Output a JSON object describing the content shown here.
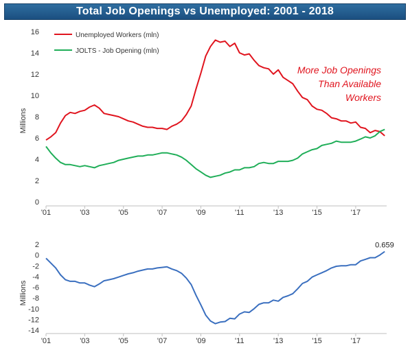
{
  "title": "Total Job Openings vs Unemployed: 2001 - 2018",
  "colors": {
    "unemployed": "#e0141e",
    "openings": "#1fae58",
    "difference": "#3a6fbf",
    "title_bg": "#1f5585"
  },
  "chart_data": [
    {
      "type": "line",
      "x_tick_labels": [
        "'01",
        "'03",
        "'05",
        "'07",
        "'09",
        "'11",
        "'13",
        "'15",
        "'17"
      ],
      "ylabel": "Millions",
      "ylim": [
        0,
        16
      ],
      "y_ticks": [
        0,
        2,
        4,
        6,
        8,
        10,
        12,
        14,
        16
      ],
      "legend_position": "top-left",
      "annotation": [
        "More Job Openings",
        "Than Available",
        "Workers"
      ],
      "series": [
        {
          "name": "Unemployed Workers (mln)",
          "color": "#e0141e",
          "points": [
            [
              2001.0,
              5.8
            ],
            [
              2001.25,
              6.1
            ],
            [
              2001.5,
              6.5
            ],
            [
              2001.75,
              7.4
            ],
            [
              2002.0,
              8.1
            ],
            [
              2002.25,
              8.4
            ],
            [
              2002.5,
              8.3
            ],
            [
              2002.75,
              8.5
            ],
            [
              2003.0,
              8.6
            ],
            [
              2003.25,
              8.9
            ],
            [
              2003.5,
              9.1
            ],
            [
              2003.75,
              8.8
            ],
            [
              2004.0,
              8.3
            ],
            [
              2004.25,
              8.2
            ],
            [
              2004.5,
              8.1
            ],
            [
              2004.75,
              8.0
            ],
            [
              2005.0,
              7.8
            ],
            [
              2005.25,
              7.6
            ],
            [
              2005.5,
              7.5
            ],
            [
              2005.75,
              7.3
            ],
            [
              2006.0,
              7.1
            ],
            [
              2006.25,
              7.0
            ],
            [
              2006.5,
              7.0
            ],
            [
              2006.75,
              6.9
            ],
            [
              2007.0,
              6.9
            ],
            [
              2007.25,
              6.8
            ],
            [
              2007.5,
              7.1
            ],
            [
              2007.75,
              7.3
            ],
            [
              2008.0,
              7.6
            ],
            [
              2008.25,
              8.2
            ],
            [
              2008.5,
              9.0
            ],
            [
              2008.75,
              10.6
            ],
            [
              2009.0,
              12.1
            ],
            [
              2009.25,
              13.7
            ],
            [
              2009.5,
              14.6
            ],
            [
              2009.75,
              15.2
            ],
            [
              2010.0,
              15.0
            ],
            [
              2010.25,
              15.1
            ],
            [
              2010.5,
              14.6
            ],
            [
              2010.75,
              14.9
            ],
            [
              2011.0,
              14.0
            ],
            [
              2011.25,
              13.8
            ],
            [
              2011.5,
              13.9
            ],
            [
              2011.75,
              13.3
            ],
            [
              2012.0,
              12.8
            ],
            [
              2012.25,
              12.6
            ],
            [
              2012.5,
              12.5
            ],
            [
              2012.75,
              12.0
            ],
            [
              2013.0,
              12.4
            ],
            [
              2013.25,
              11.7
            ],
            [
              2013.5,
              11.4
            ],
            [
              2013.75,
              11.1
            ],
            [
              2014.0,
              10.4
            ],
            [
              2014.25,
              9.8
            ],
            [
              2014.5,
              9.6
            ],
            [
              2014.75,
              9.0
            ],
            [
              2015.0,
              8.7
            ],
            [
              2015.25,
              8.6
            ],
            [
              2015.5,
              8.3
            ],
            [
              2015.75,
              7.9
            ],
            [
              2016.0,
              7.8
            ],
            [
              2016.25,
              7.6
            ],
            [
              2016.5,
              7.6
            ],
            [
              2016.75,
              7.4
            ],
            [
              2017.0,
              7.5
            ],
            [
              2017.25,
              7.0
            ],
            [
              2017.5,
              6.9
            ],
            [
              2017.75,
              6.5
            ],
            [
              2018.0,
              6.7
            ],
            [
              2018.25,
              6.6
            ],
            [
              2018.5,
              6.2
            ]
          ]
        },
        {
          "name": "JOLTS - Job Opening (mln)",
          "color": "#1fae58",
          "points": [
            [
              2001.0,
              5.2
            ],
            [
              2001.25,
              4.6
            ],
            [
              2001.5,
              4.1
            ],
            [
              2001.75,
              3.7
            ],
            [
              2002.0,
              3.5
            ],
            [
              2002.25,
              3.5
            ],
            [
              2002.5,
              3.4
            ],
            [
              2002.75,
              3.3
            ],
            [
              2003.0,
              3.4
            ],
            [
              2003.25,
              3.3
            ],
            [
              2003.5,
              3.2
            ],
            [
              2003.75,
              3.4
            ],
            [
              2004.0,
              3.5
            ],
            [
              2004.25,
              3.6
            ],
            [
              2004.5,
              3.7
            ],
            [
              2004.75,
              3.9
            ],
            [
              2005.0,
              4.0
            ],
            [
              2005.25,
              4.1
            ],
            [
              2005.5,
              4.2
            ],
            [
              2005.75,
              4.3
            ],
            [
              2006.0,
              4.3
            ],
            [
              2006.25,
              4.4
            ],
            [
              2006.5,
              4.4
            ],
            [
              2006.75,
              4.5
            ],
            [
              2007.0,
              4.6
            ],
            [
              2007.25,
              4.6
            ],
            [
              2007.5,
              4.5
            ],
            [
              2007.75,
              4.4
            ],
            [
              2008.0,
              4.2
            ],
            [
              2008.25,
              3.9
            ],
            [
              2008.5,
              3.5
            ],
            [
              2008.75,
              3.1
            ],
            [
              2009.0,
              2.8
            ],
            [
              2009.25,
              2.5
            ],
            [
              2009.5,
              2.3
            ],
            [
              2009.75,
              2.4
            ],
            [
              2010.0,
              2.5
            ],
            [
              2010.25,
              2.7
            ],
            [
              2010.5,
              2.8
            ],
            [
              2010.75,
              3.0
            ],
            [
              2011.0,
              3.0
            ],
            [
              2011.25,
              3.2
            ],
            [
              2011.5,
              3.2
            ],
            [
              2011.75,
              3.3
            ],
            [
              2012.0,
              3.6
            ],
            [
              2012.25,
              3.7
            ],
            [
              2012.5,
              3.6
            ],
            [
              2012.75,
              3.6
            ],
            [
              2013.0,
              3.8
            ],
            [
              2013.25,
              3.8
            ],
            [
              2013.5,
              3.8
            ],
            [
              2013.75,
              3.9
            ],
            [
              2014.0,
              4.1
            ],
            [
              2014.25,
              4.5
            ],
            [
              2014.5,
              4.7
            ],
            [
              2014.75,
              4.9
            ],
            [
              2015.0,
              5.0
            ],
            [
              2015.25,
              5.3
            ],
            [
              2015.5,
              5.4
            ],
            [
              2015.75,
              5.5
            ],
            [
              2016.0,
              5.7
            ],
            [
              2016.25,
              5.6
            ],
            [
              2016.5,
              5.6
            ],
            [
              2016.75,
              5.6
            ],
            [
              2017.0,
              5.7
            ],
            [
              2017.25,
              5.9
            ],
            [
              2017.5,
              6.1
            ],
            [
              2017.75,
              6.0
            ],
            [
              2018.0,
              6.2
            ],
            [
              2018.25,
              6.6
            ],
            [
              2018.5,
              6.8
            ]
          ]
        }
      ]
    },
    {
      "type": "line",
      "x_tick_labels": [
        "'01",
        "'03",
        "'05",
        "'07",
        "'09",
        "'11",
        "'13",
        "'15",
        "'17"
      ],
      "ylabel": "Millions",
      "ylim": [
        -14,
        2
      ],
      "y_ticks": [
        -14,
        -12,
        -10,
        -8,
        -6,
        -4,
        -2,
        0,
        2
      ],
      "last_value_label": "0.659",
      "series": [
        {
          "color": "#3a6fbf",
          "points": [
            [
              2001.0,
              -0.6
            ],
            [
              2001.25,
              -1.5
            ],
            [
              2001.5,
              -2.4
            ],
            [
              2001.75,
              -3.7
            ],
            [
              2002.0,
              -4.6
            ],
            [
              2002.25,
              -4.9
            ],
            [
              2002.5,
              -4.9
            ],
            [
              2002.75,
              -5.2
            ],
            [
              2003.0,
              -5.2
            ],
            [
              2003.25,
              -5.6
            ],
            [
              2003.5,
              -5.9
            ],
            [
              2003.75,
              -5.4
            ],
            [
              2004.0,
              -4.8
            ],
            [
              2004.25,
              -4.6
            ],
            [
              2004.5,
              -4.4
            ],
            [
              2004.75,
              -4.1
            ],
            [
              2005.0,
              -3.8
            ],
            [
              2005.25,
              -3.5
            ],
            [
              2005.5,
              -3.3
            ],
            [
              2005.75,
              -3.0
            ],
            [
              2006.0,
              -2.8
            ],
            [
              2006.25,
              -2.6
            ],
            [
              2006.5,
              -2.6
            ],
            [
              2006.75,
              -2.4
            ],
            [
              2007.0,
              -2.3
            ],
            [
              2007.25,
              -2.2
            ],
            [
              2007.5,
              -2.6
            ],
            [
              2007.75,
              -2.9
            ],
            [
              2008.0,
              -3.4
            ],
            [
              2008.25,
              -4.3
            ],
            [
              2008.5,
              -5.5
            ],
            [
              2008.75,
              -7.5
            ],
            [
              2009.0,
              -9.3
            ],
            [
              2009.25,
              -11.2
            ],
            [
              2009.5,
              -12.3
            ],
            [
              2009.75,
              -12.8
            ],
            [
              2010.0,
              -12.5
            ],
            [
              2010.25,
              -12.4
            ],
            [
              2010.5,
              -11.8
            ],
            [
              2010.75,
              -11.9
            ],
            [
              2011.0,
              -11.0
            ],
            [
              2011.25,
              -10.6
            ],
            [
              2011.5,
              -10.7
            ],
            [
              2011.75,
              -10.0
            ],
            [
              2012.0,
              -9.2
            ],
            [
              2012.25,
              -8.9
            ],
            [
              2012.5,
              -8.9
            ],
            [
              2012.75,
              -8.4
            ],
            [
              2013.0,
              -8.6
            ],
            [
              2013.25,
              -7.9
            ],
            [
              2013.5,
              -7.6
            ],
            [
              2013.75,
              -7.2
            ],
            [
              2014.0,
              -6.3
            ],
            [
              2014.25,
              -5.3
            ],
            [
              2014.5,
              -4.9
            ],
            [
              2014.75,
              -4.1
            ],
            [
              2015.0,
              -3.7
            ],
            [
              2015.25,
              -3.3
            ],
            [
              2015.5,
              -2.9
            ],
            [
              2015.75,
              -2.4
            ],
            [
              2016.0,
              -2.1
            ],
            [
              2016.25,
              -2.0
            ],
            [
              2016.5,
              -2.0
            ],
            [
              2016.75,
              -1.8
            ],
            [
              2017.0,
              -1.8
            ],
            [
              2017.25,
              -1.1
            ],
            [
              2017.5,
              -0.8
            ],
            [
              2017.75,
              -0.5
            ],
            [
              2018.0,
              -0.5
            ],
            [
              2018.25,
              0.0
            ],
            [
              2018.5,
              0.659
            ]
          ]
        }
      ]
    }
  ]
}
